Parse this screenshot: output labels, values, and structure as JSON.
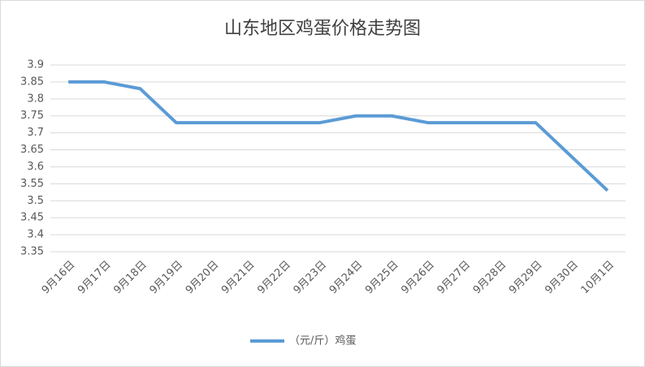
{
  "chart_data": {
    "type": "line",
    "title": "山东地区鸡蛋价格走势图",
    "categories": [
      "9月16日",
      "9月17日",
      "9月18日",
      "9月19日",
      "9月20日",
      "9月21日",
      "9月22日",
      "9月23日",
      "9月24日",
      "9月25日",
      "9月26日",
      "9月27日",
      "9月28日",
      "9月29日",
      "9月30日",
      "10月1日"
    ],
    "series": [
      {
        "name": "（元/斤）鸡蛋",
        "color": "#5b9bd5",
        "values": [
          3.85,
          3.85,
          3.83,
          3.73,
          3.73,
          3.73,
          3.73,
          3.73,
          3.75,
          3.75,
          3.73,
          3.73,
          3.73,
          3.73,
          3.63,
          3.53
        ]
      }
    ],
    "ylim": [
      3.35,
      3.9
    ],
    "yticks": [
      3.35,
      3.4,
      3.45,
      3.5,
      3.55,
      3.6,
      3.65,
      3.7,
      3.75,
      3.8,
      3.85,
      3.9
    ],
    "grid": true,
    "legend": "bottom"
  }
}
